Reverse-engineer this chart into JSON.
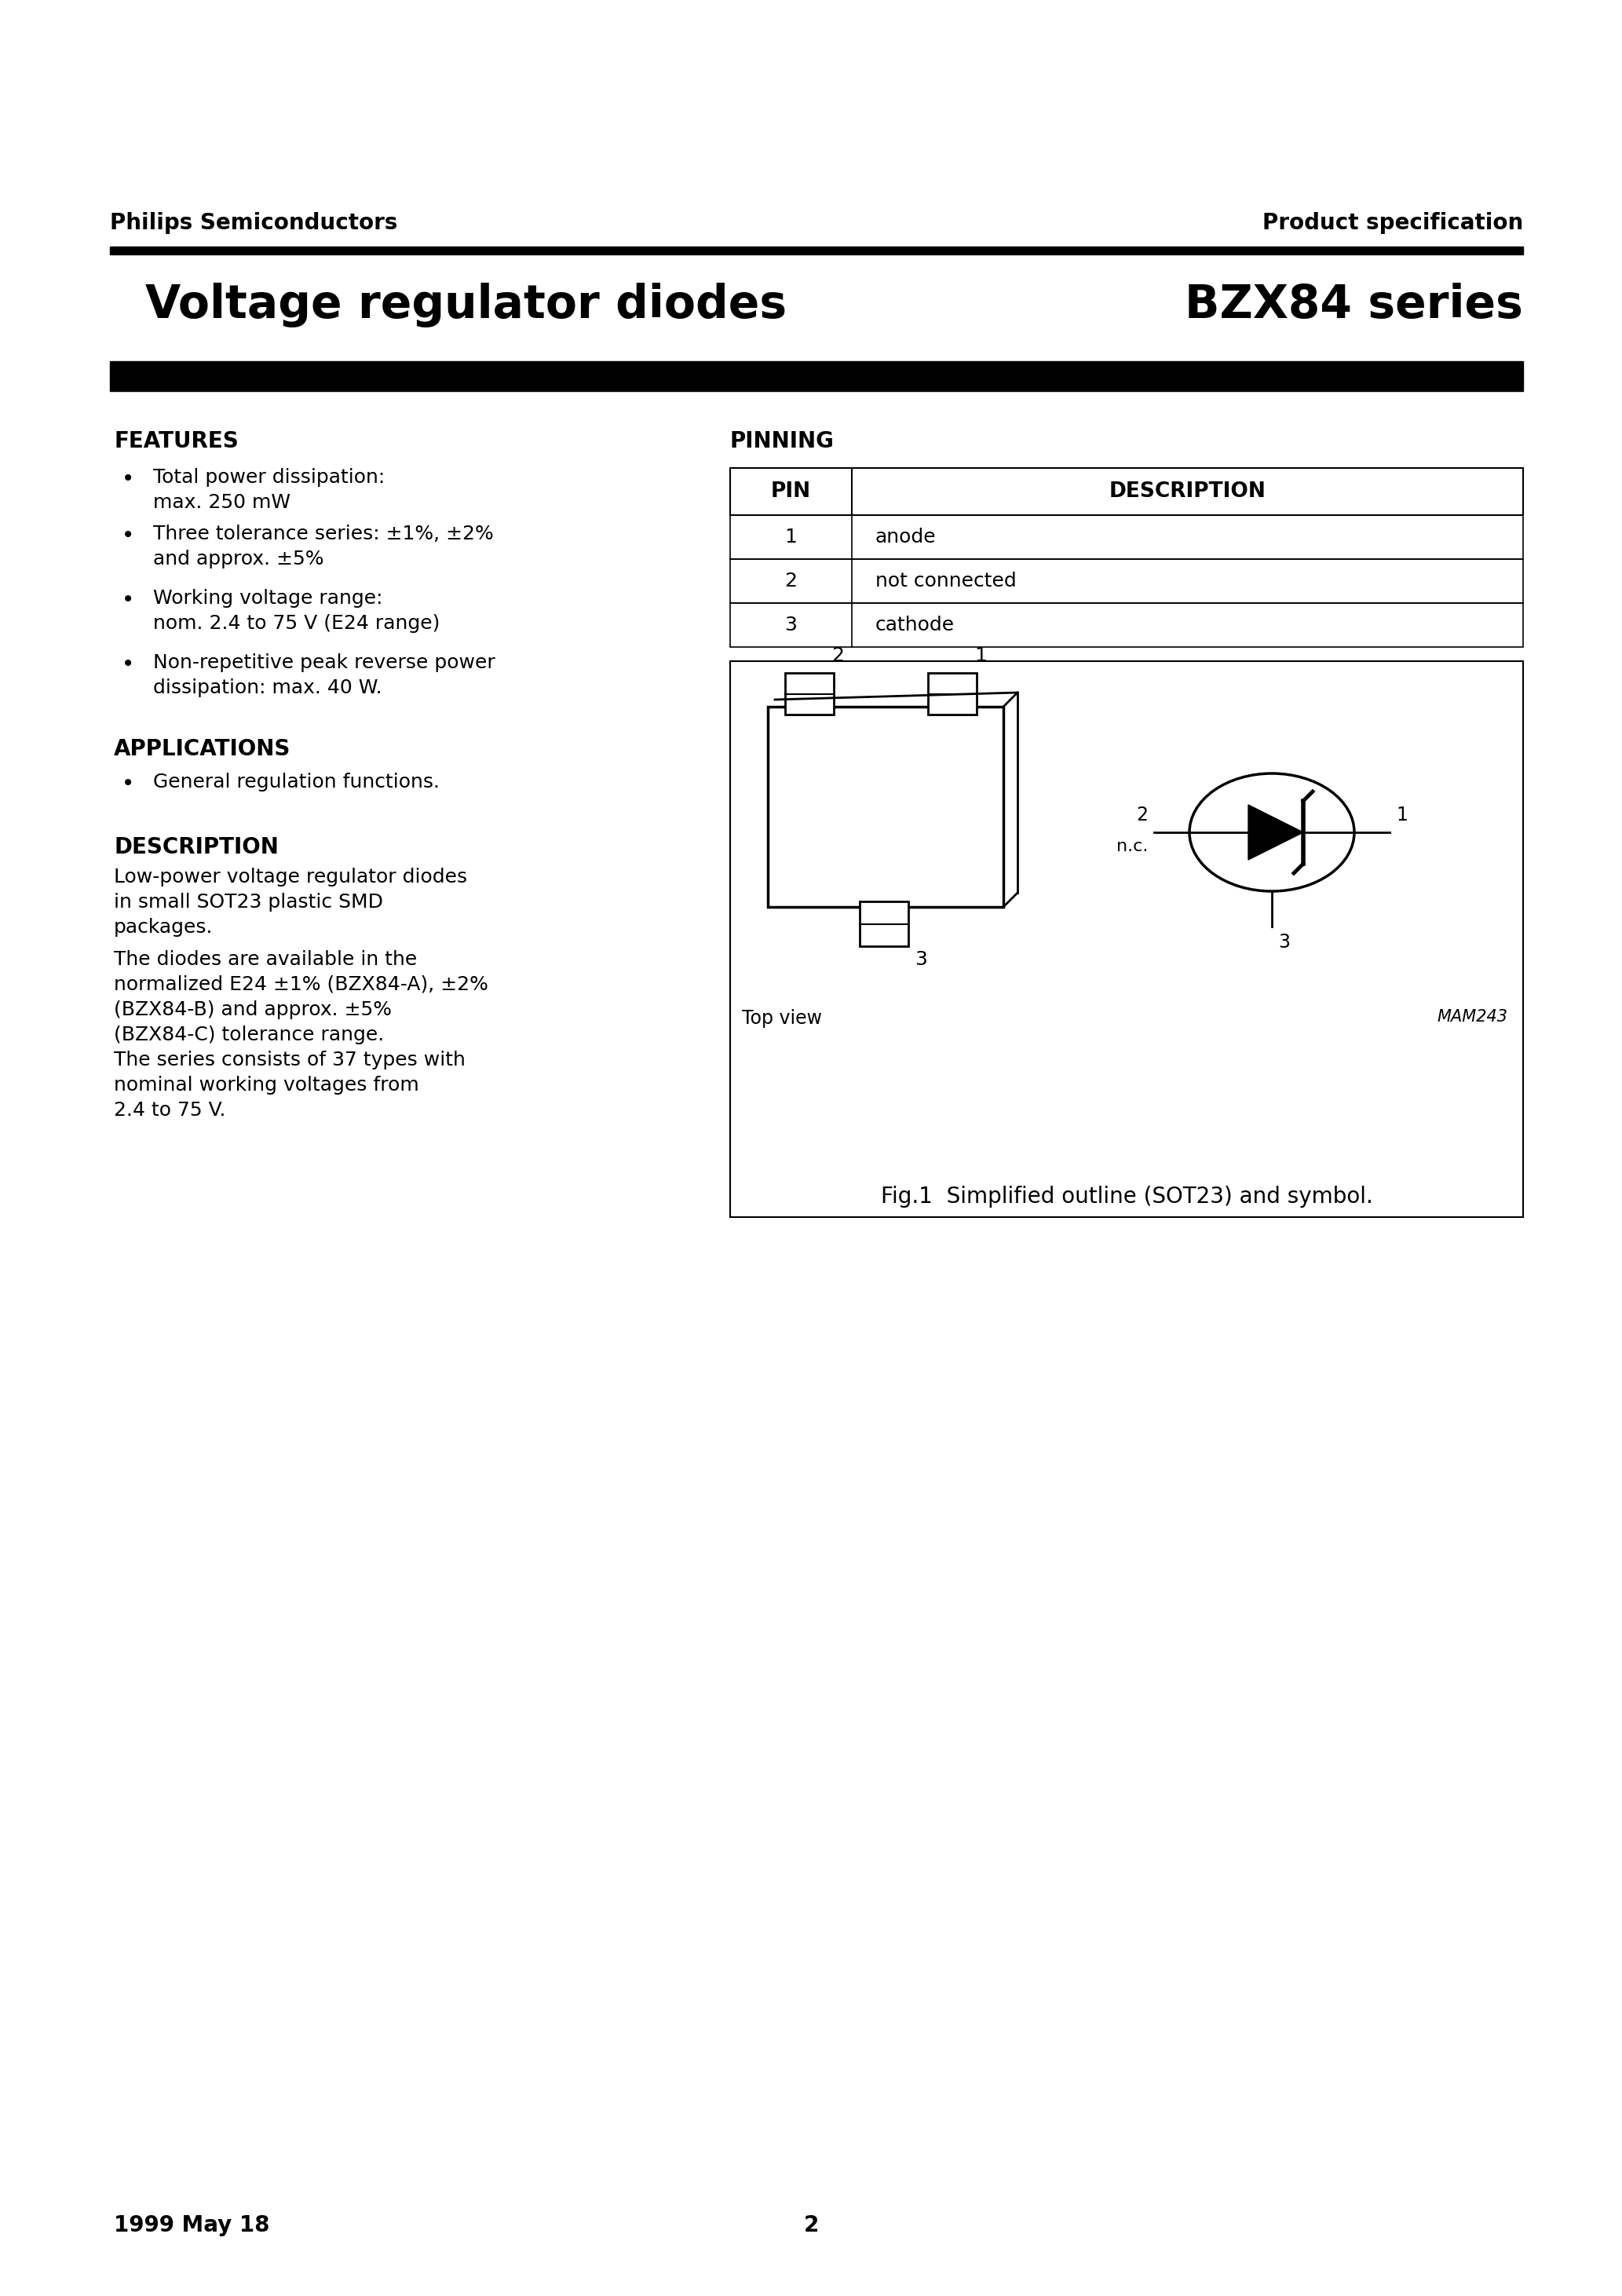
{
  "page_title_left": "Voltage regulator diodes",
  "page_title_right": "BZX84 series",
  "header_left": "Philips Semiconductors",
  "header_right": "Product specification",
  "features_title": "FEATURES",
  "features_bullets": [
    "Total power dissipation:\nmax. 250 mW",
    "Three tolerance series: ±1%, ±2%\nand approx. ±5%",
    "Working voltage range:\nnom. 2.4 to 75 V (E24 range)",
    "Non-repetitive peak reverse power\ndissipation: max. 40 W."
  ],
  "applications_title": "APPLICATIONS",
  "applications_bullets": [
    "General regulation functions."
  ],
  "description_title": "DESCRIPTION",
  "description_text1": "Low-power voltage regulator diodes\nin small SOT23 plastic SMD\npackages.",
  "description_text2": "The diodes are available in the\nnormalized E24 ±1% (BZX84-A), ±2%\n(BZX84-B) and approx. ±5%\n(BZX84-C) tolerance range.\nThe series consists of 37 types with\nnominal working voltages from\n2.4 to 75 V.",
  "pinning_title": "PINNING",
  "pin_table_headers": [
    "PIN",
    "DESCRIPTION"
  ],
  "pin_table_rows": [
    [
      "1",
      "anode"
    ],
    [
      "2",
      "not connected"
    ],
    [
      "3",
      "cathode"
    ]
  ],
  "fig_caption": "Fig.1  Simplified outline (SOT23) and symbol.",
  "fig_label": "MAM243",
  "footer_left": "1999 May 18",
  "footer_center": "2",
  "bg_color": "#ffffff",
  "text_color": "#000000"
}
